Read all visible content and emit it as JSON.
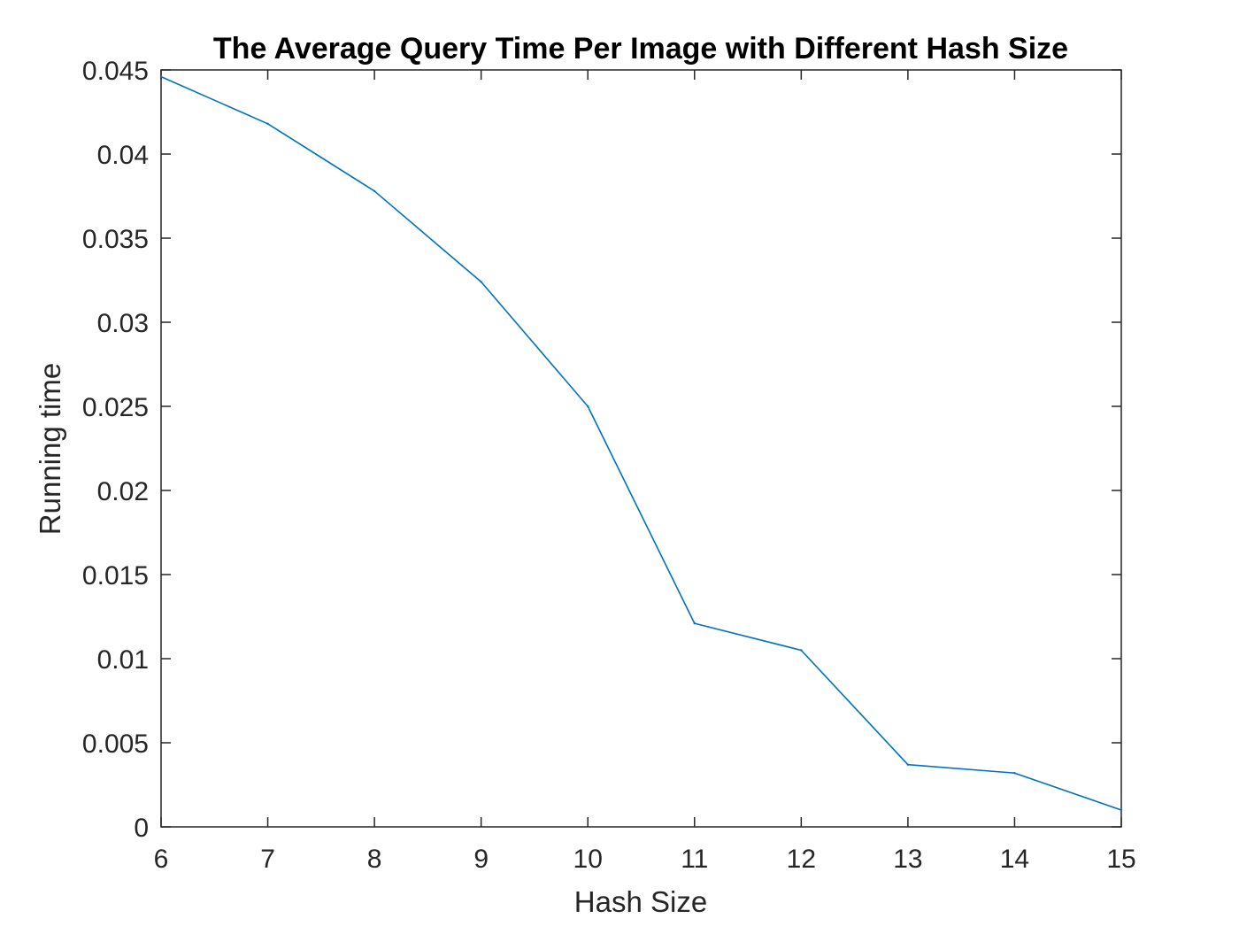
{
  "chart_data": {
    "type": "line",
    "title": "The Average Query Time Per Image with Different Hash Size",
    "xlabel": "Hash Size",
    "ylabel": "Running time",
    "xlim": [
      6,
      15
    ],
    "ylim": [
      0,
      0.045
    ],
    "x_ticks": [
      6,
      7,
      8,
      9,
      10,
      11,
      12,
      13,
      14,
      15
    ],
    "x_tick_labels": [
      "6",
      "7",
      "8",
      "9",
      "10",
      "11",
      "12",
      "13",
      "14",
      "15"
    ],
    "y_ticks": [
      0,
      0.005,
      0.01,
      0.015,
      0.02,
      0.025,
      0.03,
      0.035,
      0.04,
      0.045
    ],
    "y_tick_labels": [
      "0",
      "0.005",
      "0.01",
      "0.015",
      "0.02",
      "0.025",
      "0.03",
      "0.035",
      "0.04",
      "0.045"
    ],
    "grid": false,
    "line_color": "#0072BD",
    "axis_color": "#262626",
    "series": [
      {
        "x": [
          6,
          7,
          8,
          9,
          10,
          11,
          12,
          13,
          14,
          15
        ],
        "values": [
          0.0446,
          0.0418,
          0.0378,
          0.0324,
          0.025,
          0.0121,
          0.0105,
          0.0037,
          0.0032,
          0.001
        ]
      }
    ]
  }
}
